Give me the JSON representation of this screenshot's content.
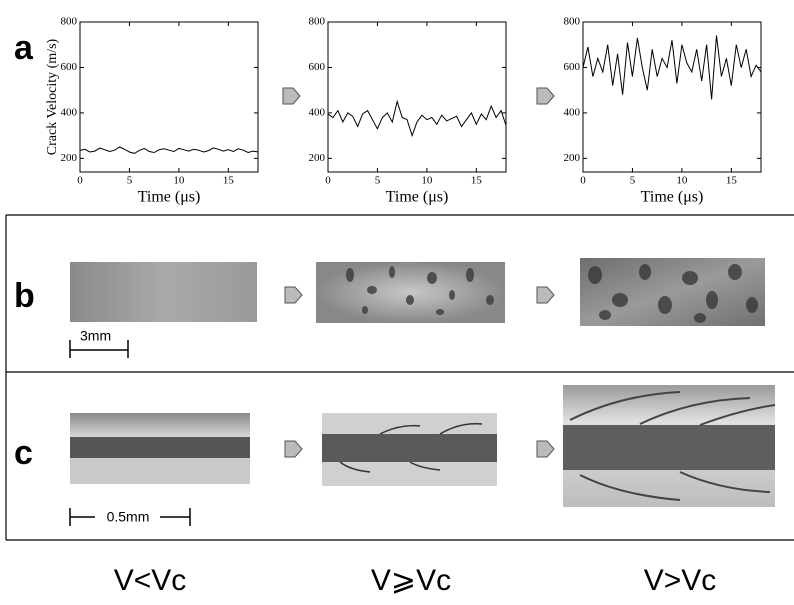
{
  "chart_data": [
    {
      "type": "line",
      "ylabel": "Crack Velocity (m/s)",
      "xlabel": "Time (μs)",
      "color": "#000000",
      "x": [
        0,
        0.5,
        1,
        1.5,
        2,
        2.5,
        3,
        3.5,
        4,
        4.5,
        5,
        5.5,
        6,
        6.5,
        7,
        7.5,
        8,
        8.5,
        9,
        9.5,
        10,
        10.5,
        11,
        11.5,
        12,
        12.5,
        13,
        13.5,
        14,
        14.5,
        15,
        15.5,
        16,
        16.5,
        17,
        17.5,
        18
      ],
      "values": [
        235,
        240,
        228,
        232,
        245,
        238,
        230,
        236,
        250,
        240,
        228,
        222,
        235,
        244,
        230,
        226,
        238,
        242,
        236,
        230,
        244,
        238,
        232,
        240,
        236,
        228,
        234,
        246,
        240,
        232,
        238,
        230,
        242,
        236,
        226,
        232,
        228
      ],
      "xlim": [
        0,
        18
      ],
      "xticks": [
        0,
        5,
        10,
        15
      ],
      "ylim": [
        140,
        800
      ],
      "yticks": [
        200,
        400,
        600,
        800
      ]
    },
    {
      "type": "line",
      "xlabel": "Time (μs)",
      "color": "#000000",
      "x": [
        0,
        0.5,
        1,
        1.5,
        2,
        2.5,
        3,
        3.5,
        4,
        4.5,
        5,
        5.5,
        6,
        6.5,
        7,
        7.5,
        8,
        8.5,
        9,
        9.5,
        10,
        10.5,
        11,
        11.5,
        12,
        12.5,
        13,
        13.5,
        14,
        14.5,
        15,
        15.5,
        16,
        16.5,
        17,
        17.5,
        18
      ],
      "values": [
        395,
        380,
        410,
        360,
        400,
        385,
        340,
        395,
        410,
        370,
        330,
        380,
        400,
        360,
        450,
        380,
        370,
        300,
        360,
        390,
        370,
        380,
        350,
        390,
        365,
        375,
        385,
        340,
        370,
        400,
        350,
        395,
        370,
        430,
        380,
        410,
        345
      ],
      "xlim": [
        0,
        18
      ],
      "xticks": [
        0,
        5,
        10,
        15
      ],
      "ylim": [
        140,
        800
      ],
      "yticks": [
        200,
        400,
        600,
        800
      ]
    },
    {
      "type": "line",
      "xlabel": "Time (μs)",
      "color": "#000000",
      "x": [
        0,
        0.5,
        1,
        1.5,
        2,
        2.5,
        3,
        3.5,
        4,
        4.5,
        5,
        5.5,
        6,
        6.5,
        7,
        7.5,
        8,
        8.5,
        9,
        9.5,
        10,
        10.5,
        11,
        11.5,
        12,
        12.5,
        13,
        13.5,
        14,
        14.5,
        15,
        15.5,
        16,
        16.5,
        17,
        17.5,
        18
      ],
      "values": [
        600,
        690,
        560,
        640,
        580,
        700,
        520,
        660,
        480,
        710,
        560,
        730,
        600,
        500,
        680,
        560,
        640,
        600,
        720,
        530,
        700,
        620,
        580,
        680,
        540,
        700,
        460,
        740,
        560,
        640,
        520,
        700,
        600,
        680,
        560,
        610,
        580
      ],
      "xlim": [
        0,
        18
      ],
      "xticks": [
        0,
        5,
        10,
        15
      ],
      "ylim": [
        140,
        800
      ],
      "yticks": [
        200,
        400,
        600,
        800
      ]
    }
  ],
  "panel_labels": [
    "a",
    "b",
    "c"
  ],
  "scale_bars": [
    "3mm",
    "0.5mm"
  ],
  "conditions": [
    "V<Vc",
    "V⩾Vc",
    "V>Vc"
  ]
}
